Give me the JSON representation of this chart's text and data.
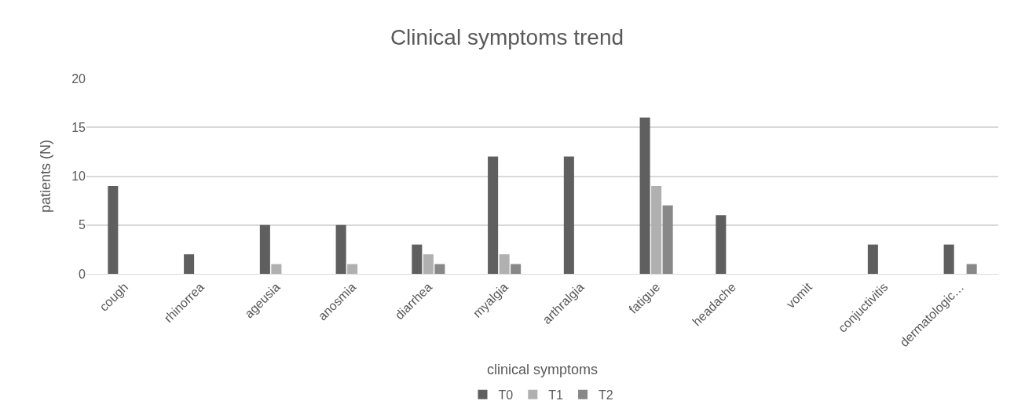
{
  "chart_data": {
    "type": "bar",
    "title": "Clinical symptoms trend",
    "xlabel": "clinical symptoms",
    "ylabel": "patients (N)",
    "categories": [
      "cough",
      "rhinorrea",
      "ageusia",
      "anosmia",
      "diarrhea",
      "myalgia",
      "arthralgia",
      "fatigue",
      "headache",
      "vomit",
      "conjuctivitis",
      "dermatologic…"
    ],
    "series": [
      {
        "name": "T0",
        "color": "#5f5f5f",
        "values": [
          9,
          2,
          5,
          5,
          3,
          12,
          12,
          16,
          6,
          0,
          3,
          3
        ]
      },
      {
        "name": "T1",
        "color": "#b0b0b0",
        "values": [
          0,
          0,
          1,
          1,
          2,
          2,
          0,
          9,
          0,
          0,
          0,
          0
        ]
      },
      {
        "name": "T2",
        "color": "#888888",
        "values": [
          0,
          0,
          0,
          0,
          1,
          1,
          0,
          7,
          0,
          0,
          0,
          1
        ]
      }
    ],
    "ylim": [
      0,
      20
    ],
    "yticks": [
      0,
      5,
      10,
      15,
      20
    ],
    "grid": "y",
    "legend": "bottom"
  }
}
